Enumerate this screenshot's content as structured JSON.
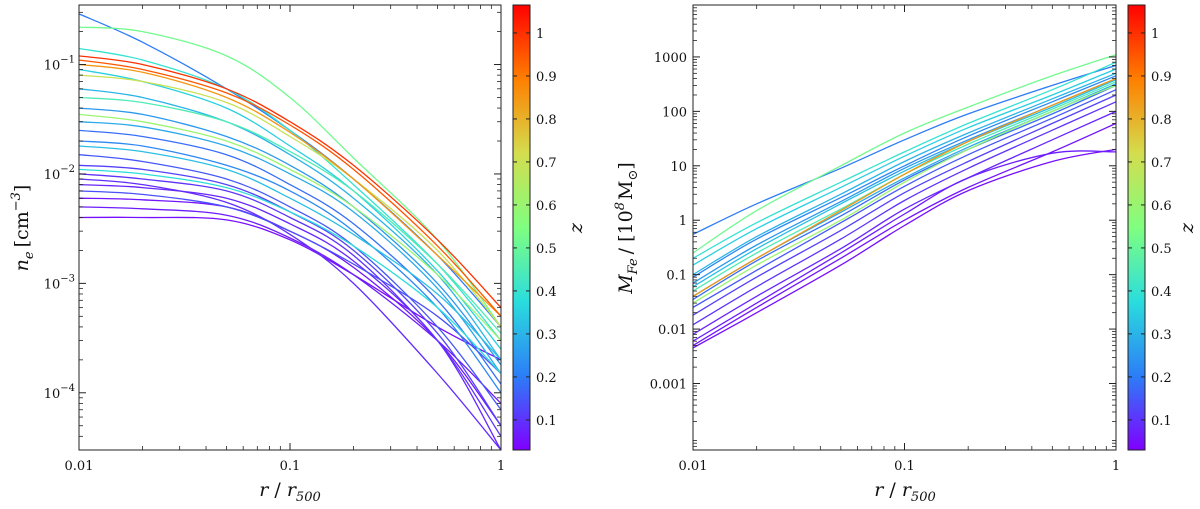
{
  "chart_data": [
    {
      "type": "line",
      "panel": "left",
      "xlabel": "r / r_500",
      "xlabel_main": "r",
      "xlabel_denom": "r",
      "xlabel_sub": "500",
      "ylabel": "n_e [cm^-3]",
      "ylabel_sym": "n",
      "ylabel_sub": "e",
      "ylabel_unit": "[cm",
      "ylabel_exp": "−3",
      "ylabel_close": "]",
      "xscale": "log",
      "yscale": "log",
      "xlim": [
        0.01,
        1
      ],
      "ylim": [
        3e-05,
        0.35
      ],
      "xticks": [
        {
          "value": 0.01,
          "label": "0.01"
        },
        {
          "value": 0.1,
          "label": "0.1"
        },
        {
          "value": 1,
          "label": "1"
        }
      ],
      "yticks": [
        {
          "value": 0.1,
          "base": "10",
          "exp": "−1"
        },
        {
          "value": 0.01,
          "base": "10",
          "exp": "−2"
        },
        {
          "value": 0.001,
          "base": "10",
          "exp": "−3"
        },
        {
          "value": 0.0001,
          "base": "10",
          "exp": "−4"
        }
      ],
      "x_samples": [
        0.01,
        0.02,
        0.05,
        0.1,
        0.2,
        0.5,
        1
      ],
      "series_note": "Representative subset of ~150 cluster density profiles, colored by redshift z",
      "series": [
        {
          "z": 0.2,
          "values": [
            0.29,
            0.16,
            0.06,
            0.025,
            0.009,
            0.0018,
            0.0004
          ]
        },
        {
          "z": 0.52,
          "values": [
            0.22,
            0.2,
            0.12,
            0.05,
            0.014,
            0.0025,
            0.0004
          ]
        },
        {
          "z": 1.0,
          "values": [
            0.12,
            0.1,
            0.06,
            0.03,
            0.012,
            0.0025,
            0.0006
          ]
        },
        {
          "z": 0.95,
          "values": [
            0.11,
            0.09,
            0.055,
            0.028,
            0.011,
            0.0022,
            0.0005
          ]
        },
        {
          "z": 0.85,
          "values": [
            0.1,
            0.085,
            0.05,
            0.024,
            0.009,
            0.0018,
            0.0005
          ]
        },
        {
          "z": 0.7,
          "values": [
            0.08,
            0.07,
            0.045,
            0.022,
            0.009,
            0.002,
            0.0004
          ]
        },
        {
          "z": 0.4,
          "values": [
            0.14,
            0.11,
            0.06,
            0.025,
            0.008,
            0.0015,
            0.0003
          ]
        },
        {
          "z": 0.35,
          "values": [
            0.09,
            0.07,
            0.04,
            0.018,
            0.007,
            0.0013,
            0.00025
          ]
        },
        {
          "z": 0.3,
          "values": [
            0.06,
            0.05,
            0.03,
            0.015,
            0.006,
            0.0012,
            0.0002
          ]
        },
        {
          "z": 0.45,
          "values": [
            0.05,
            0.045,
            0.03,
            0.016,
            0.007,
            0.0015,
            0.00035
          ]
        },
        {
          "z": 0.25,
          "values": [
            0.04,
            0.035,
            0.022,
            0.012,
            0.005,
            0.001,
            0.00018
          ]
        },
        {
          "z": 0.28,
          "values": [
            0.03,
            0.027,
            0.018,
            0.01,
            0.0045,
            0.0009,
            0.00015
          ]
        },
        {
          "z": 0.6,
          "values": [
            0.035,
            0.03,
            0.02,
            0.011,
            0.005,
            0.0012,
            0.0003
          ]
        },
        {
          "z": 0.18,
          "values": [
            0.025,
            0.022,
            0.015,
            0.008,
            0.0035,
            0.0007,
            0.00012
          ]
        },
        {
          "z": 0.22,
          "values": [
            0.02,
            0.018,
            0.012,
            0.007,
            0.003,
            0.0006,
            0.0001
          ]
        },
        {
          "z": 0.15,
          "values": [
            0.015,
            0.013,
            0.009,
            0.005,
            0.0022,
            0.0004,
            7e-05
          ]
        },
        {
          "z": 0.12,
          "values": [
            0.012,
            0.011,
            0.008,
            0.0045,
            0.002,
            0.00035,
            5e-05
          ]
        },
        {
          "z": 0.1,
          "values": [
            0.01,
            0.009,
            0.007,
            0.004,
            0.0018,
            0.0003,
            4e-05
          ]
        },
        {
          "z": 0.08,
          "values": [
            0.008,
            0.0075,
            0.006,
            0.0035,
            0.0016,
            0.0003,
            3e-05
          ]
        },
        {
          "z": 0.06,
          "values": [
            0.006,
            0.0058,
            0.005,
            0.003,
            0.0014,
            0.0003,
            5e-05
          ]
        },
        {
          "z": 0.07,
          "values": [
            0.005,
            0.0048,
            0.0042,
            0.0026,
            0.0012,
            0.0003,
            8e-05
          ]
        },
        {
          "z": 0.05,
          "values": [
            0.004,
            0.004,
            0.0038,
            0.0025,
            0.0012,
            0.0004,
            0.0002
          ]
        },
        {
          "z": 0.14,
          "values": [
            0.007,
            0.0065,
            0.005,
            0.003,
            0.0015,
            0.0005,
            0.00015
          ]
        },
        {
          "z": 0.09,
          "values": [
            0.009,
            0.008,
            0.0055,
            0.0028,
            0.001,
            0.00015,
            3e-05
          ]
        },
        {
          "z": 0.32,
          "values": [
            0.018,
            0.016,
            0.011,
            0.006,
            0.0028,
            0.0008,
            0.0002
          ]
        },
        {
          "z": 0.38,
          "values": [
            0.011,
            0.01,
            0.0075,
            0.0045,
            0.0022,
            0.0006,
            0.00015
          ]
        }
      ]
    },
    {
      "type": "line",
      "panel": "right",
      "xlabel": "r / r_500",
      "xlabel_main": "r",
      "xlabel_denom": "r",
      "xlabel_sub": "500",
      "ylabel": "M_Fe / [10^8 M_⊙]",
      "ylabel_sym": "M",
      "ylabel_sub": "Fe",
      "ylabel_unit": "/ [10",
      "ylabel_exp": "8",
      "ylabel_msym": "M",
      "ylabel_msub": "⊙",
      "ylabel_close": "]",
      "xscale": "log",
      "yscale": "log",
      "xlim": [
        0.01,
        1
      ],
      "ylim": [
        6e-05,
        9000
      ],
      "xticks": [
        {
          "value": 0.01,
          "label": "0.01"
        },
        {
          "value": 0.1,
          "label": "0.1"
        },
        {
          "value": 1,
          "label": "1"
        }
      ],
      "yticks": [
        {
          "value": 1000,
          "label": "1000"
        },
        {
          "value": 100,
          "label": "100"
        },
        {
          "value": 10,
          "label": "10"
        },
        {
          "value": 1,
          "label": "1"
        },
        {
          "value": 0.1,
          "label": "0.1"
        },
        {
          "value": 0.01,
          "label": "0.01"
        },
        {
          "value": 0.001,
          "label": "0.001"
        }
      ],
      "x_samples": [
        0.01,
        0.02,
        0.05,
        0.1,
        0.2,
        0.5,
        1
      ],
      "series_note": "Representative subset of ~150 cumulative iron-mass profiles, colored by redshift z",
      "series": [
        {
          "z": 0.52,
          "values": [
            0.25,
            1.5,
            10,
            40,
            120,
            450,
            1100
          ]
        },
        {
          "z": 0.2,
          "values": [
            0.55,
            2.0,
            9,
            30,
            90,
            300,
            700
          ]
        },
        {
          "z": 0.4,
          "values": [
            0.2,
            0.9,
            5,
            18,
            60,
            250,
            800
          ]
        },
        {
          "z": 0.35,
          "values": [
            0.15,
            0.7,
            4,
            15,
            50,
            200,
            600
          ]
        },
        {
          "z": 0.3,
          "values": [
            0.1,
            0.5,
            3,
            12,
            40,
            170,
            500
          ]
        },
        {
          "z": 0.25,
          "values": [
            0.07,
            0.35,
            2.2,
            9,
            30,
            130,
            400
          ]
        },
        {
          "z": 0.45,
          "values": [
            0.05,
            0.25,
            1.6,
            7,
            25,
            110,
            350
          ]
        },
        {
          "z": 0.18,
          "values": [
            0.035,
            0.18,
            1.2,
            5.5,
            20,
            90,
            300
          ]
        },
        {
          "z": 0.15,
          "values": [
            0.025,
            0.12,
            0.9,
            4.2,
            16,
            75,
            250
          ]
        },
        {
          "z": 0.12,
          "values": [
            0.018,
            0.09,
            0.65,
            3.2,
            12,
            60,
            200
          ]
        },
        {
          "z": 0.1,
          "values": [
            0.012,
            0.06,
            0.45,
            2.3,
            9,
            45,
            150
          ]
        },
        {
          "z": 0.08,
          "values": [
            0.008,
            0.04,
            0.3,
            1.6,
            6,
            30,
            100
          ]
        },
        {
          "z": 0.06,
          "values": [
            0.005,
            0.025,
            0.2,
            1.0,
            4,
            18,
            60
          ]
        },
        {
          "z": 0.05,
          "values": [
            0.0045,
            0.02,
            0.15,
            0.8,
            3.5,
            12,
            20
          ]
        },
        {
          "z": 0.07,
          "values": [
            0.006,
            0.03,
            0.25,
            1.3,
            6,
            17,
            18
          ]
        },
        {
          "z": 0.28,
          "values": [
            0.04,
            0.2,
            1.4,
            6,
            22,
            100,
            320
          ]
        },
        {
          "z": 0.32,
          "values": [
            0.06,
            0.3,
            2.0,
            8,
            28,
            120,
            380
          ]
        },
        {
          "z": 0.22,
          "values": [
            0.09,
            0.45,
            2.6,
            10,
            35,
            150,
            450
          ]
        },
        {
          "z": 0.6,
          "values": [
            0.03,
            0.15,
            1.0,
            5,
            20,
            100,
            300
          ]
        },
        {
          "z": 0.85,
          "values": [
            0.04,
            0.2,
            1.5,
            7,
            28,
            130,
            400
          ]
        }
      ]
    }
  ],
  "colorbar": {
    "label": "z",
    "min": 0.03,
    "max": 1.065,
    "ticks": [
      "0.1",
      "0.2",
      "0.3",
      "0.4",
      "0.5",
      "0.6",
      "0.7",
      "0.8",
      "0.9",
      "1"
    ],
    "colormap": "rainbow",
    "stops": [
      "#8000ff",
      "#2c7ef7",
      "#2adddd",
      "#80ff80",
      "#d4dd4e",
      "#ff7f00",
      "#ff0000"
    ]
  }
}
